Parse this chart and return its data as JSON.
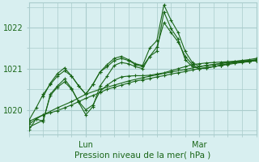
{
  "title": "Pression niveau de la mer( hPa )",
  "bg_color": "#d8eff0",
  "grid_color": "#aacccc",
  "line_color": "#1a6618",
  "ylim": [
    1019.4,
    1022.6
  ],
  "xlim": [
    0,
    96
  ],
  "yticks": [
    1020,
    1021,
    1022
  ],
  "xtick_lun": 24,
  "xtick_mar": 72,
  "series": [
    [
      0,
      1019.65,
      3,
      1019.78,
      6,
      1019.88,
      9,
      1019.93,
      12,
      1019.98,
      15,
      1020.05,
      18,
      1020.12,
      21,
      1020.2,
      24,
      1020.28,
      27,
      1020.35,
      30,
      1020.42,
      33,
      1020.5,
      36,
      1020.55,
      39,
      1020.6,
      42,
      1020.65,
      45,
      1020.7,
      48,
      1020.73,
      51,
      1020.76,
      54,
      1020.8,
      57,
      1020.83,
      60,
      1020.87,
      63,
      1020.9,
      66,
      1020.93,
      69,
      1020.97,
      72,
      1021.0,
      75,
      1021.03,
      78,
      1021.05,
      81,
      1021.08,
      84,
      1021.1,
      87,
      1021.13,
      90,
      1021.15,
      93,
      1021.17,
      96,
      1021.2
    ],
    [
      0,
      1019.72,
      6,
      1019.88,
      12,
      1020.05,
      18,
      1020.2,
      24,
      1020.38,
      30,
      1020.5,
      36,
      1020.6,
      42,
      1020.7,
      48,
      1020.78,
      54,
      1020.85,
      60,
      1020.92,
      66,
      1020.98,
      72,
      1021.05,
      78,
      1021.1,
      84,
      1021.15,
      90,
      1021.18,
      96,
      1021.22
    ],
    [
      0,
      1019.58,
      6,
      1019.75,
      9,
      1020.35,
      12,
      1020.55,
      15,
      1020.68,
      18,
      1020.5,
      21,
      1020.2,
      24,
      1020.0,
      27,
      1020.12,
      30,
      1020.45,
      33,
      1020.6,
      36,
      1020.72,
      39,
      1020.8,
      42,
      1020.82,
      45,
      1020.83,
      48,
      1020.83,
      51,
      1020.84,
      54,
      1020.87,
      57,
      1020.9,
      60,
      1020.95,
      63,
      1021.0,
      66,
      1021.05,
      69,
      1021.1,
      72,
      1021.12,
      75,
      1021.14,
      78,
      1021.15,
      81,
      1021.16,
      84,
      1021.17,
      87,
      1021.18,
      90,
      1021.19,
      93,
      1021.2,
      96,
      1021.2
    ],
    [
      0,
      1019.75,
      3,
      1020.05,
      6,
      1020.38,
      9,
      1020.62,
      12,
      1020.82,
      15,
      1020.95,
      18,
      1020.82,
      21,
      1020.58,
      24,
      1020.38,
      27,
      1020.62,
      30,
      1020.92,
      33,
      1021.05,
      36,
      1021.2,
      39,
      1021.25,
      42,
      1021.2,
      45,
      1021.1,
      48,
      1021.05,
      51,
      1021.3,
      54,
      1021.52,
      57,
      1022.12,
      60,
      1021.88,
      63,
      1021.65,
      66,
      1021.3,
      69,
      1021.1,
      72,
      1021.0,
      75,
      1021.02,
      78,
      1021.05,
      81,
      1021.08,
      84,
      1021.12,
      87,
      1021.15,
      90,
      1021.17,
      93,
      1021.18,
      96,
      1021.2
    ],
    [
      0,
      1019.52,
      3,
      1019.78,
      6,
      1019.72,
      9,
      1020.38,
      12,
      1020.58,
      15,
      1020.75,
      18,
      1020.52,
      21,
      1020.18,
      24,
      1019.88,
      27,
      1020.08,
      30,
      1020.58,
      33,
      1020.82,
      36,
      1021.08,
      39,
      1021.15,
      42,
      1021.12,
      45,
      1021.05,
      48,
      1021.0,
      51,
      1021.3,
      54,
      1021.42,
      57,
      1022.38,
      60,
      1021.98,
      63,
      1021.72,
      66,
      1021.22,
      69,
      1021.05,
      72,
      1021.0,
      75,
      1021.02,
      78,
      1021.05,
      81,
      1021.08,
      84,
      1021.12,
      87,
      1021.15,
      90,
      1021.17,
      93,
      1021.18,
      96,
      1021.2
    ],
    [
      6,
      1020.32,
      9,
      1020.65,
      12,
      1020.88,
      15,
      1021.02,
      18,
      1020.82,
      21,
      1020.58,
      24,
      1020.38,
      27,
      1020.62,
      30,
      1020.92,
      33,
      1021.1,
      36,
      1021.25,
      39,
      1021.3,
      42,
      1021.22,
      45,
      1021.12,
      48,
      1021.08,
      51,
      1021.5,
      54,
      1021.68,
      57,
      1022.55,
      60,
      1022.18,
      63,
      1021.88,
      66,
      1021.42,
      69,
      1021.15,
      72,
      1021.05,
      75,
      1021.08,
      78,
      1021.1,
      81,
      1021.12,
      84,
      1021.15,
      87,
      1021.18,
      90,
      1021.2,
      93,
      1021.22,
      96,
      1021.25
    ]
  ]
}
